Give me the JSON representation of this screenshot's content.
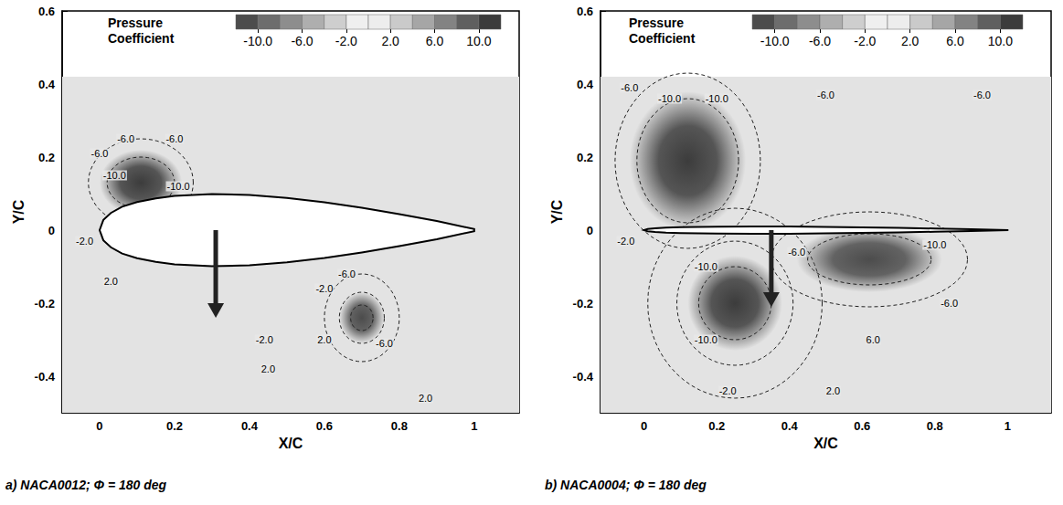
{
  "chart_data": [
    {
      "type": "contour",
      "caption": "a) NACA0012; Φ = 180 deg",
      "x_label": "X/C",
      "y_label": "Y/C",
      "xlim": [
        -0.1,
        1.12
      ],
      "xticks": [
        0,
        0.2,
        0.4,
        0.6,
        0.8,
        1
      ],
      "ylim": [
        -0.5,
        0.6
      ],
      "yticks": [
        -0.4,
        -0.2,
        0,
        0.2,
        0.4,
        0.6
      ],
      "colorbar": {
        "title": "Pressure Coefficient",
        "range": [
          -12,
          12
        ],
        "levels": [
          -12,
          -10,
          -8,
          -6,
          -4,
          -2,
          0,
          2,
          4,
          6,
          8,
          10,
          12
        ],
        "ticks": [
          {
            "value": -10,
            "label": "-10.0"
          },
          {
            "value": -6,
            "label": "-6.0"
          },
          {
            "value": -2,
            "label": "-2.0"
          },
          {
            "value": 2,
            "label": "2.0"
          },
          {
            "value": 6,
            "label": "6.0"
          },
          {
            "value": 10,
            "label": "10.0"
          }
        ],
        "colors": [
          "#3c3c3c",
          "#ffffff",
          "#2a2a2a"
        ]
      },
      "field": {
        "ylim": [
          -0.5,
          0.42
        ]
      },
      "airfoil": {
        "x": [
          0,
          0.01,
          0.03,
          0.06,
          0.1,
          0.15,
          0.2,
          0.3,
          0.4,
          0.5,
          0.6,
          0.7,
          0.8,
          0.9,
          1.0
        ],
        "y_upper": [
          0,
          0.028,
          0.047,
          0.064,
          0.077,
          0.087,
          0.094,
          0.099,
          0.096,
          0.088,
          0.076,
          0.061,
          0.044,
          0.025,
          0.003
        ],
        "y_lower": [
          0,
          -0.028,
          -0.047,
          -0.064,
          -0.077,
          -0.087,
          -0.094,
          -0.099,
          -0.096,
          -0.088,
          -0.076,
          -0.061,
          -0.044,
          -0.025,
          -0.003
        ]
      },
      "vortices": [
        {
          "x": 0.11,
          "y": 0.13,
          "rx": 0.11,
          "ry": 0.09,
          "cp": -12,
          "contours": [
            {
              "value": -10,
              "rx": 0.09,
              "ry": 0.07
            },
            {
              "value": -6,
              "rx": 0.14,
              "ry": 0.12
            }
          ]
        },
        {
          "x": 0.7,
          "y": -0.24,
          "rx": 0.06,
          "ry": 0.07,
          "cp": -11,
          "contours": [
            {
              "value": -10,
              "rx": 0.03,
              "ry": 0.035
            },
            {
              "value": -6,
              "rx": 0.06,
              "ry": 0.07
            },
            {
              "value": -2,
              "rx": 0.1,
              "ry": 0.12
            }
          ]
        }
      ],
      "contour_labels": [
        {
          "x": 0.0,
          "y": 0.21,
          "label": "-6.0"
        },
        {
          "x": 0.07,
          "y": 0.25,
          "label": "-6.0"
        },
        {
          "x": 0.2,
          "y": 0.25,
          "label": "-6.0"
        },
        {
          "x": 0.04,
          "y": 0.15,
          "label": "-10.0"
        },
        {
          "x": 0.21,
          "y": 0.12,
          "label": "-10.0"
        },
        {
          "x": -0.04,
          "y": -0.03,
          "label": "-2.0"
        },
        {
          "x": 0.03,
          "y": -0.14,
          "label": "2.0"
        },
        {
          "x": 0.6,
          "y": -0.16,
          "label": "-2.0"
        },
        {
          "x": 0.66,
          "y": -0.12,
          "label": "-6.0"
        },
        {
          "x": 0.76,
          "y": -0.31,
          "label": "-6.0"
        },
        {
          "x": 0.6,
          "y": -0.3,
          "label": "2.0"
        },
        {
          "x": 0.44,
          "y": -0.3,
          "label": "-2.0"
        },
        {
          "x": 0.45,
          "y": -0.38,
          "label": "2.0"
        },
        {
          "x": 0.87,
          "y": -0.46,
          "label": "2.0"
        }
      ],
      "arrow": {
        "x": 0.31,
        "y": [
          0,
          -0.24
        ]
      }
    },
    {
      "type": "contour",
      "caption": "b) NACA0004; Φ = 180 deg",
      "x_label": "X/C",
      "y_label": "Y/C",
      "xlim": [
        -0.12,
        1.12
      ],
      "xticks": [
        0,
        0.2,
        0.4,
        0.6,
        0.8,
        1
      ],
      "ylim": [
        -0.5,
        0.6
      ],
      "yticks": [
        -0.4,
        -0.2,
        0,
        0.2,
        0.4,
        0.6
      ],
      "colorbar": {
        "title": "Pressure Coefficient",
        "range": [
          -12,
          12
        ],
        "levels": [
          -12,
          -10,
          -8,
          -6,
          -4,
          -2,
          0,
          2,
          4,
          6,
          8,
          10,
          12
        ],
        "ticks": [
          {
            "value": -10,
            "label": "-10.0"
          },
          {
            "value": -6,
            "label": "-6.0"
          },
          {
            "value": -2,
            "label": "-2.0"
          },
          {
            "value": 2,
            "label": "2.0"
          },
          {
            "value": 6,
            "label": "6.0"
          },
          {
            "value": 10,
            "label": "10.0"
          }
        ],
        "colors": [
          "#3c3c3c",
          "#ffffff",
          "#2a2a2a"
        ]
      },
      "field": {
        "ylim": [
          -0.5,
          0.42
        ]
      },
      "airfoil": {
        "x": [
          0,
          0.01,
          0.03,
          0.06,
          0.1,
          0.15,
          0.2,
          0.3,
          0.4,
          0.5,
          0.6,
          0.7,
          0.8,
          0.9,
          1.0
        ],
        "y_upper": [
          0,
          0.003,
          0.005,
          0.007,
          0.008,
          0.009,
          0.0095,
          0.01,
          0.0097,
          0.0088,
          0.0076,
          0.0061,
          0.0044,
          0.0025,
          0.0003
        ],
        "y_lower": [
          0,
          -0.003,
          -0.005,
          -0.007,
          -0.008,
          -0.009,
          -0.0095,
          -0.01,
          -0.0097,
          -0.0088,
          -0.0076,
          -0.0061,
          -0.0044,
          -0.0025,
          -0.0003
        ]
      },
      "vortices": [
        {
          "x": 0.12,
          "y": 0.19,
          "rx": 0.16,
          "ry": 0.19,
          "cp": -12,
          "contours": [
            {
              "value": -10,
              "rx": 0.14,
              "ry": 0.17
            },
            {
              "value": -6,
              "rx": 0.2,
              "ry": 0.24
            }
          ]
        },
        {
          "x": 0.25,
          "y": -0.2,
          "rx": 0.13,
          "ry": 0.13,
          "cp": -12,
          "contours": [
            {
              "value": -10,
              "rx": 0.1,
              "ry": 0.1
            },
            {
              "value": -6,
              "rx": 0.16,
              "ry": 0.17
            },
            {
              "value": -2,
              "rx": 0.24,
              "ry": 0.26
            }
          ]
        },
        {
          "x": 0.62,
          "y": -0.08,
          "rx": 0.2,
          "ry": 0.09,
          "cp": -11,
          "contours": [
            {
              "value": -10,
              "rx": 0.17,
              "ry": 0.07
            },
            {
              "value": -6,
              "rx": 0.27,
              "ry": 0.13
            }
          ]
        }
      ],
      "contour_labels": [
        {
          "x": -0.04,
          "y": 0.39,
          "label": "-6.0"
        },
        {
          "x": 0.07,
          "y": 0.36,
          "label": "-10.0"
        },
        {
          "x": 0.2,
          "y": 0.36,
          "label": "-10.0"
        },
        {
          "x": 0.5,
          "y": 0.37,
          "label": "-6.0"
        },
        {
          "x": 0.93,
          "y": 0.37,
          "label": "-6.0"
        },
        {
          "x": -0.05,
          "y": -0.03,
          "label": "-2.0"
        },
        {
          "x": 0.17,
          "y": -0.1,
          "label": "-10.0"
        },
        {
          "x": 0.17,
          "y": -0.3,
          "label": "-10.0"
        },
        {
          "x": 0.42,
          "y": -0.06,
          "label": "-6.0"
        },
        {
          "x": 0.8,
          "y": -0.04,
          "label": "-10.0"
        },
        {
          "x": 0.84,
          "y": -0.2,
          "label": "-6.0"
        },
        {
          "x": 0.63,
          "y": -0.3,
          "label": "6.0"
        },
        {
          "x": 0.23,
          "y": -0.44,
          "label": "-2.0"
        },
        {
          "x": 0.52,
          "y": -0.44,
          "label": "2.0"
        }
      ],
      "arrow": {
        "x": 0.35,
        "y": [
          0,
          -0.21
        ]
      }
    }
  ]
}
